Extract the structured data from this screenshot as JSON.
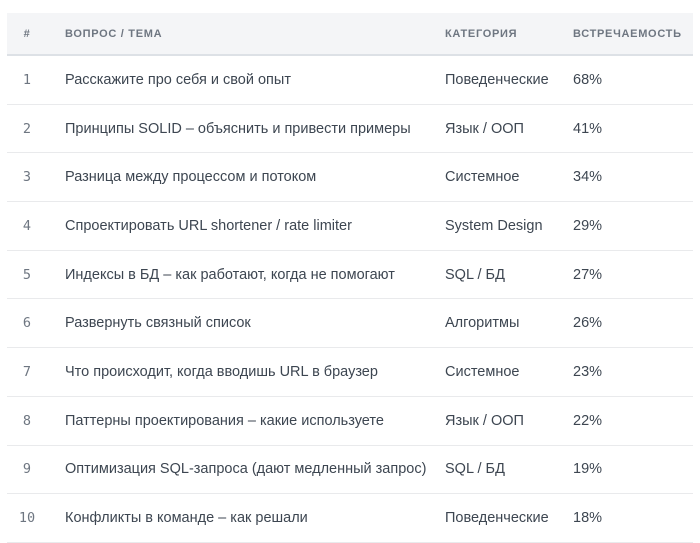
{
  "table": {
    "columns": [
      {
        "key": "num",
        "label": "#"
      },
      {
        "key": "question",
        "label": "ВОПРОС / ТЕМА"
      },
      {
        "key": "category",
        "label": "КАТЕГОРИЯ"
      },
      {
        "key": "frequency",
        "label": "ВСТРЕЧАЕМОСТЬ"
      }
    ],
    "rows": [
      {
        "num": "1",
        "question": "Расскажите про себя и свой опыт",
        "category": "Поведенческие",
        "frequency": "68%"
      },
      {
        "num": "2",
        "question": "Принципы SOLID – объяснить и привести примеры",
        "category": "Язык / ООП",
        "frequency": "41%"
      },
      {
        "num": "3",
        "question": "Разница между процессом и потоком",
        "category": "Системное",
        "frequency": "34%"
      },
      {
        "num": "4",
        "question": "Спроектировать URL shortener / rate limiter",
        "category": "System Design",
        "frequency": "29%"
      },
      {
        "num": "5",
        "question": "Индексы в БД – как работают, когда не помогают",
        "category": "SQL / БД",
        "frequency": "27%"
      },
      {
        "num": "6",
        "question": "Развернуть связный список",
        "category": "Алгоритмы",
        "frequency": "26%"
      },
      {
        "num": "7",
        "question": "Что происходит, когда вводишь URL в браузер",
        "category": "Системное",
        "frequency": "23%"
      },
      {
        "num": "8",
        "question": "Паттерны проектирования – какие используете",
        "category": "Язык / ООП",
        "frequency": "22%"
      },
      {
        "num": "9",
        "question": "Оптимизация SQL-запроса (дают медленный запрос)",
        "category": "SQL / БД",
        "frequency": "19%"
      },
      {
        "num": "10",
        "question": "Конфликты в команде – как решали",
        "category": "Поведенческие",
        "frequency": "18%"
      }
    ]
  },
  "colors": {
    "header_bg": "#f4f5f7",
    "header_text": "#6e7681",
    "header_border": "#dde1e6",
    "row_border": "#e9eaec",
    "body_text": "#3d4651",
    "row_number_text": "#6e7681",
    "page_bg": "#ffffff"
  }
}
